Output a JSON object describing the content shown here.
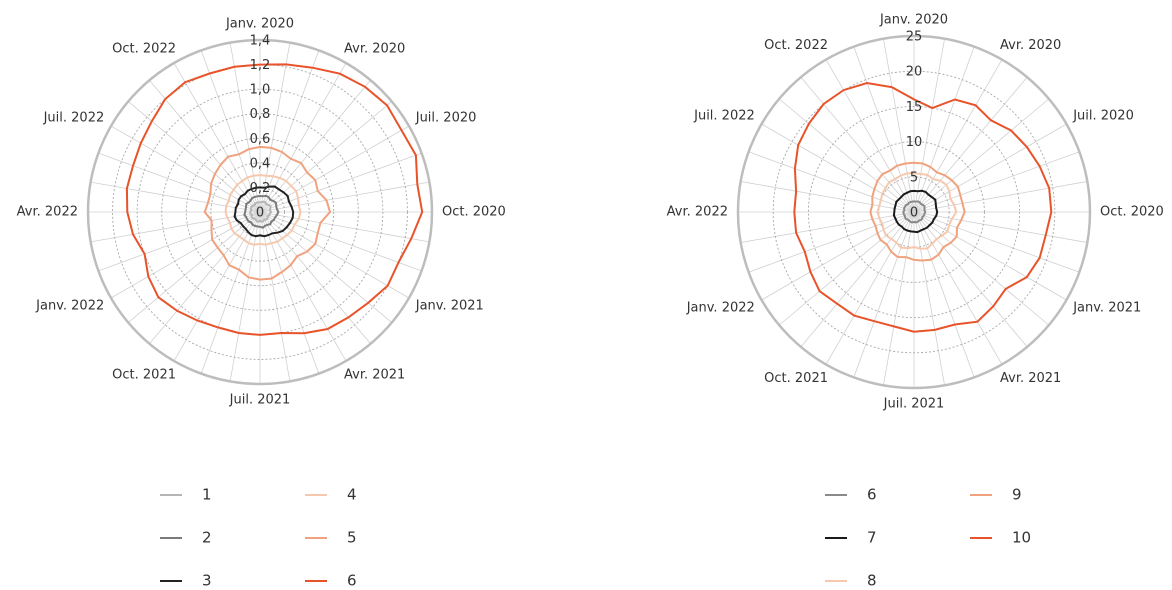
{
  "chart_data": [
    {
      "type": "radar",
      "categories": [
        "Janv. 2020",
        null,
        null,
        "Avr. 2020",
        null,
        null,
        "Juil. 2020",
        null,
        null,
        "Oct. 2020",
        null,
        null,
        "Janv. 2021",
        null,
        null,
        "Avr. 2021",
        null,
        null,
        "Juil. 2021",
        null,
        null,
        "Oct. 2021",
        null,
        null,
        "Janv. 2022",
        null,
        null,
        "Avr. 2022",
        null,
        null,
        "Juil. 2022",
        null,
        null,
        "Oct. 2022",
        null,
        null
      ],
      "ylim": [
        0,
        1.4
      ],
      "yticks": [
        0,
        {
          "value": 0.2,
          "label": "0,2"
        },
        {
          "value": 0.4,
          "label": "0,4"
        },
        {
          "value": 0.6,
          "label": "0,6"
        },
        {
          "value": 0.8,
          "label": "0,8"
        },
        {
          "value": 1.0,
          "label": "1,0"
        },
        {
          "value": 1.2,
          "label": "1,2"
        },
        {
          "value": 1.4,
          "label": "1,4"
        }
      ],
      "series": [
        {
          "name": "1",
          "color": "#b5b5b5",
          "values": [
            0.08,
            0.08,
            0.09,
            0.09,
            0.08,
            0.09,
            0.1,
            0.09,
            0.08,
            0.09,
            0.08,
            0.08,
            0.07,
            0.08,
            0.08,
            0.07,
            0.08,
            0.08,
            0.07,
            0.08,
            0.08,
            0.07,
            0.07,
            0.08,
            0.08,
            0.07,
            0.08,
            0.08,
            0.07,
            0.08,
            0.08,
            0.08,
            0.07,
            0.08,
            0.08,
            0.08
          ]
        },
        {
          "name": "2",
          "color": "#7a7a7a",
          "values": [
            0.13,
            0.13,
            0.14,
            0.14,
            0.13,
            0.14,
            0.15,
            0.14,
            0.14,
            0.15,
            0.14,
            0.13,
            0.13,
            0.12,
            0.13,
            0.12,
            0.12,
            0.13,
            0.12,
            0.12,
            0.12,
            0.12,
            0.11,
            0.12,
            0.12,
            0.12,
            0.13,
            0.12,
            0.12,
            0.12,
            0.13,
            0.12,
            0.12,
            0.13,
            0.13,
            0.13
          ]
        },
        {
          "name": "3",
          "color": "#222222",
          "values": [
            0.2,
            0.2,
            0.22,
            0.24,
            0.24,
            0.25,
            0.26,
            0.25,
            0.26,
            0.27,
            0.27,
            0.26,
            0.25,
            0.24,
            0.22,
            0.2,
            0.2,
            0.2,
            0.19,
            0.2,
            0.2,
            0.19,
            0.18,
            0.18,
            0.18,
            0.2,
            0.21,
            0.2,
            0.2,
            0.19,
            0.2,
            0.2,
            0.19,
            0.2,
            0.2,
            0.2
          ]
        },
        {
          "name": "4",
          "color": "#f6c8ad",
          "values": [
            0.3,
            0.3,
            0.31,
            0.32,
            0.33,
            0.33,
            0.34,
            0.33,
            0.32,
            0.33,
            0.32,
            0.3,
            0.3,
            0.29,
            0.28,
            0.28,
            0.27,
            0.27,
            0.26,
            0.27,
            0.27,
            0.26,
            0.26,
            0.27,
            0.27,
            0.26,
            0.27,
            0.28,
            0.28,
            0.27,
            0.28,
            0.28,
            0.29,
            0.29,
            0.3,
            0.3
          ]
        },
        {
          "name": "5",
          "color": "#f0a27e",
          "values": [
            0.53,
            0.53,
            0.52,
            0.5,
            0.52,
            0.5,
            0.52,
            0.5,
            0.55,
            0.57,
            0.5,
            0.5,
            0.52,
            0.5,
            0.47,
            0.5,
            0.52,
            0.55,
            0.55,
            0.54,
            0.5,
            0.5,
            0.46,
            0.45,
            0.45,
            0.42,
            0.4,
            0.45,
            0.43,
            0.43,
            0.46,
            0.48,
            0.5,
            0.52,
            0.5,
            0.52
          ]
        },
        {
          "name": "6",
          "color": "#e8532a",
          "values": [
            1.2,
            1.22,
            1.25,
            1.3,
            1.33,
            1.35,
            1.33,
            1.35,
            1.3,
            1.32,
            1.25,
            1.2,
            1.2,
            1.15,
            1.12,
            1.1,
            1.05,
            1.0,
            1.0,
            1.0,
            1.0,
            1.02,
            1.05,
            1.08,
            1.05,
            1.0,
            1.05,
            1.08,
            1.1,
            1.1,
            1.12,
            1.15,
            1.2,
            1.22,
            1.2,
            1.2
          ]
        }
      ]
    },
    {
      "type": "radar",
      "categories": [
        "Janv. 2020",
        null,
        null,
        "Avr. 2020",
        null,
        null,
        "Juil. 2020",
        null,
        null,
        "Oct. 2020",
        null,
        null,
        "Janv. 2021",
        null,
        null,
        "Avr. 2021",
        null,
        null,
        "Juil. 2021",
        null,
        null,
        "Oct. 2021",
        null,
        null,
        "Janv. 2022",
        null,
        null,
        "Avr. 2022",
        null,
        null,
        "Juil. 2022",
        null,
        null,
        "Oct. 2022",
        null,
        null
      ],
      "ylim": [
        0,
        25
      ],
      "yticks": [
        0,
        5,
        10,
        15,
        20,
        25
      ],
      "series": [
        {
          "name": "6",
          "color": "#8a8a8a",
          "values": [
            1.5,
            1.5,
            1.6,
            1.6,
            1.5,
            1.6,
            1.7,
            1.6,
            1.5,
            1.6,
            1.5,
            1.5,
            1.4,
            1.5,
            1.5,
            1.4,
            1.5,
            1.5,
            1.4,
            1.5,
            1.5,
            1.4,
            1.4,
            1.5,
            1.5,
            1.4,
            1.5,
            1.5,
            1.4,
            1.5,
            1.5,
            1.5,
            1.4,
            1.5,
            1.5,
            1.5
          ]
        },
        {
          "name": "7",
          "color": "#1a1a1a",
          "values": [
            3.0,
            3.0,
            3.2,
            3.3,
            3.2,
            3.3,
            3.5,
            3.3,
            3.2,
            3.3,
            3.2,
            3.0,
            3.0,
            2.9,
            2.9,
            2.8,
            2.8,
            2.9,
            2.8,
            2.8,
            2.8,
            2.8,
            2.7,
            2.8,
            2.8,
            2.8,
            2.9,
            2.8,
            2.8,
            2.8,
            2.9,
            2.8,
            2.8,
            2.9,
            2.9,
            3.0
          ]
        },
        {
          "name": "8",
          "color": "#f6c8ad",
          "values": [
            5.5,
            5.5,
            5.6,
            5.4,
            5.8,
            6.0,
            5.8,
            5.5,
            5.8,
            6.0,
            5.5,
            5.3,
            5.5,
            5.2,
            5.0,
            5.2,
            5.5,
            5.3,
            5.0,
            5.2,
            5.4,
            5.0,
            5.0,
            5.2,
            5.0,
            4.8,
            5.0,
            5.2,
            5.0,
            5.0,
            5.2,
            5.3,
            5.5,
            5.4,
            5.5,
            5.6
          ]
        },
        {
          "name": "9",
          "color": "#f0a27e",
          "values": [
            7.0,
            7.0,
            6.8,
            6.5,
            6.8,
            7.0,
            7.2,
            7.0,
            7.0,
            7.2,
            6.8,
            6.5,
            7.0,
            6.8,
            6.5,
            7.0,
            7.2,
            7.0,
            6.8,
            6.5,
            6.8,
            6.5,
            6.0,
            6.2,
            6.0,
            5.8,
            6.0,
            6.2,
            6.0,
            6.3,
            6.5,
            6.8,
            7.0,
            6.8,
            7.0,
            7.0
          ]
        },
        {
          "name": "10",
          "color": "#e8532a",
          "values": [
            16,
            15,
            17,
            17.5,
            17,
            18,
            18.5,
            19,
            19.5,
            19.5,
            19,
            19,
            18.5,
            17,
            17.5,
            18,
            17,
            17,
            17,
            16.5,
            16.5,
            17,
            17,
            17.5,
            17,
            16.5,
            17,
            17,
            17,
            18,
            19,
            19.5,
            20,
            20,
            19.5,
            18
          ]
        }
      ]
    }
  ]
}
